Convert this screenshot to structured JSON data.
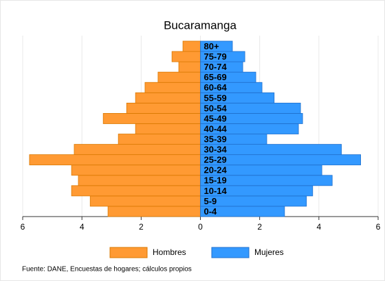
{
  "chart_data": {
    "type": "pyramid",
    "title": "Bucaramanga",
    "categories": [
      "0-4",
      "5-9",
      "10-14",
      "15-19",
      "20-24",
      "25-29",
      "30-34",
      "35-39",
      "40-44",
      "45-49",
      "50-54",
      "55-59",
      "60-64",
      "65-69",
      "70-74",
      "75-79",
      "80+"
    ],
    "series": [
      {
        "name": "Hombres",
        "color": "#ff9a33",
        "values": [
          -3.12,
          -3.72,
          -4.35,
          -4.12,
          -4.35,
          -5.77,
          -4.26,
          -2.77,
          -2.19,
          -3.28,
          -2.49,
          -2.19,
          -1.87,
          -1.43,
          -0.73,
          -0.96,
          -0.59
        ]
      },
      {
        "name": "Mujeres",
        "color": "#3399ff",
        "values": [
          2.84,
          3.58,
          3.79,
          4.45,
          4.1,
          5.41,
          4.76,
          2.24,
          3.31,
          3.45,
          3.38,
          2.49,
          2.08,
          1.87,
          1.43,
          1.5,
          1.08
        ]
      }
    ],
    "xlim": [
      -6,
      6
    ],
    "xticks": [
      {
        "value": -6,
        "label": "6"
      },
      {
        "value": -4,
        "label": "4"
      },
      {
        "value": -2,
        "label": "2"
      },
      0,
      2,
      4,
      6
    ],
    "grid": true,
    "footnote": "Fuente: DANE, Encuestas de hogares; cálculos propios"
  }
}
